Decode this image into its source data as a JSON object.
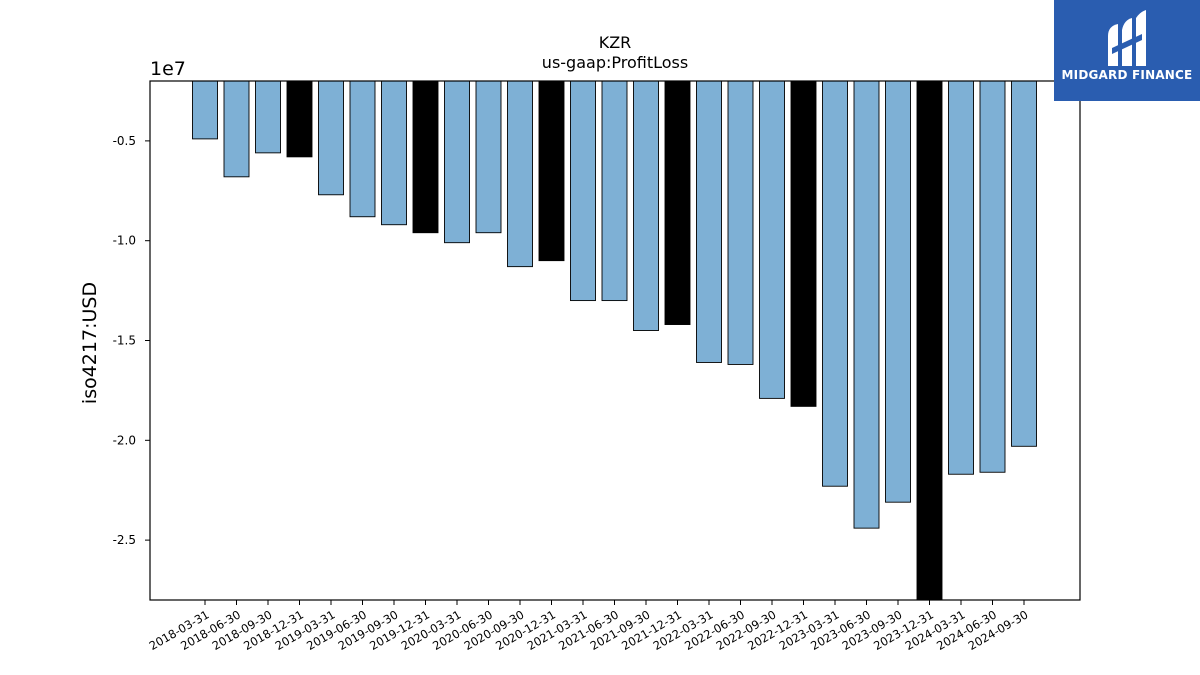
{
  "brand": {
    "name": "MIDGARD FINANCE",
    "logo_icon": "midgard-logo-icon",
    "bg_color": "#2a5db0"
  },
  "chart_data": {
    "type": "bar",
    "title": "KZR",
    "subtitle": "us-gaap:ProfitLoss",
    "xlabel": "",
    "ylabel": "iso4217:USD",
    "y_offset_label": "1e7",
    "ylim": [
      -28000000,
      -2000000
    ],
    "yticks": [
      -5000000,
      -10000000,
      -15000000,
      -20000000,
      -25000000
    ],
    "ytick_labels": [
      "-0.5",
      "-1.0",
      "-1.5",
      "-2.0",
      "-2.5"
    ],
    "bar_color_quarter": "#7eb0d5",
    "bar_color_year_end": "#000000",
    "grid": false,
    "categories": [
      "2018-03-31",
      "2018-06-30",
      "2018-09-30",
      "2018-12-31",
      "2019-03-31",
      "2019-06-30",
      "2019-09-30",
      "2019-12-31",
      "2020-03-31",
      "2020-06-30",
      "2020-09-30",
      "2020-12-31",
      "2021-03-31",
      "2021-06-30",
      "2021-09-30",
      "2021-12-31",
      "2022-03-31",
      "2022-06-30",
      "2022-09-30",
      "2022-12-31",
      "2023-03-31",
      "2023-06-30",
      "2023-09-30",
      "2023-12-31",
      "2024-03-31",
      "2024-06-30",
      "2024-09-30"
    ],
    "values": [
      -4900000,
      -6800000,
      -5600000,
      -5800000,
      -7700000,
      -8800000,
      -9200000,
      -9600000,
      -10100000,
      -9600000,
      -11300000,
      -11000000,
      -13000000,
      -13000000,
      -14500000,
      -14200000,
      -16100000,
      -16200000,
      -17900000,
      -18300000,
      -22300000,
      -24400000,
      -23100000,
      -28000000,
      -21700000,
      -21600000,
      -20300000
    ],
    "year_end": [
      false,
      false,
      false,
      true,
      false,
      false,
      false,
      true,
      false,
      false,
      false,
      true,
      false,
      false,
      false,
      true,
      false,
      false,
      false,
      true,
      false,
      false,
      false,
      true,
      false,
      false,
      false
    ]
  }
}
